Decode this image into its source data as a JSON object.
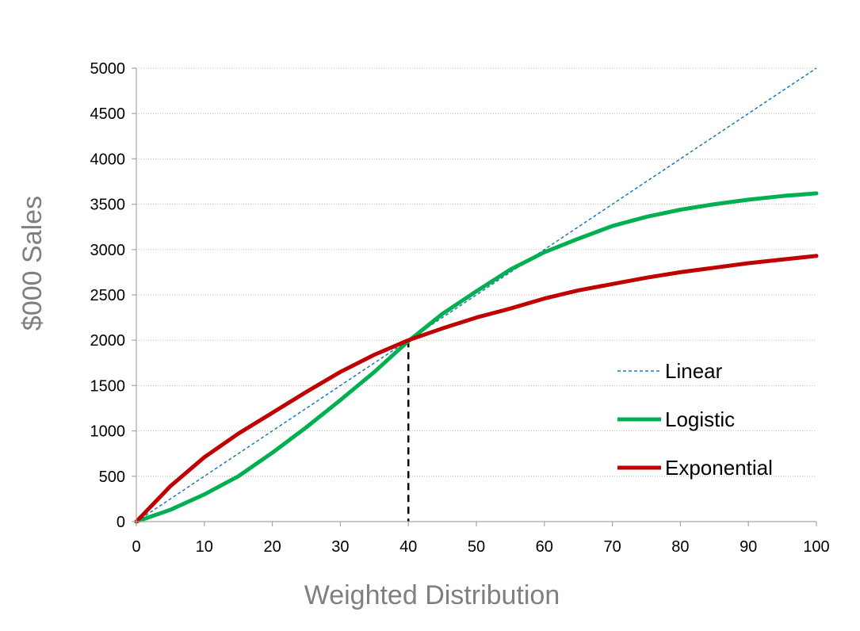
{
  "chart_data": {
    "type": "line",
    "title": "",
    "xlabel": "Weighted Distribution",
    "ylabel": "$000 Sales",
    "xlim": [
      0,
      100
    ],
    "ylim": [
      0,
      5000
    ],
    "xticks": [
      0,
      10,
      20,
      30,
      40,
      50,
      60,
      70,
      80,
      90,
      100
    ],
    "yticks": [
      0,
      500,
      1000,
      1500,
      2000,
      2500,
      3000,
      3500,
      4000,
      4500,
      5000
    ],
    "grid": "horizontal-dotted",
    "legend_position": "right",
    "reference_line": {
      "x": 40,
      "y_top": 2000,
      "style": "dashed"
    },
    "series": [
      {
        "name": "Linear",
        "color": "#1f78b4",
        "style": "dashed",
        "points": [
          [
            0,
            0
          ],
          [
            100,
            5000
          ]
        ]
      },
      {
        "name": "Logistic",
        "color": "#00b050",
        "style": "solid",
        "points": [
          [
            0,
            0
          ],
          [
            5,
            130
          ],
          [
            10,
            300
          ],
          [
            15,
            500
          ],
          [
            20,
            760
          ],
          [
            25,
            1040
          ],
          [
            30,
            1340
          ],
          [
            35,
            1650
          ],
          [
            40,
            1990
          ],
          [
            45,
            2290
          ],
          [
            50,
            2540
          ],
          [
            55,
            2780
          ],
          [
            60,
            2970
          ],
          [
            65,
            3120
          ],
          [
            70,
            3260
          ],
          [
            75,
            3360
          ],
          [
            80,
            3440
          ],
          [
            85,
            3500
          ],
          [
            90,
            3550
          ],
          [
            95,
            3590
          ],
          [
            100,
            3620
          ]
        ]
      },
      {
        "name": "Exponential",
        "color": "#c00000",
        "style": "solid",
        "points": [
          [
            0,
            0
          ],
          [
            5,
            390
          ],
          [
            10,
            710
          ],
          [
            15,
            970
          ],
          [
            20,
            1200
          ],
          [
            25,
            1430
          ],
          [
            30,
            1650
          ],
          [
            35,
            1840
          ],
          [
            40,
            2000
          ],
          [
            45,
            2130
          ],
          [
            50,
            2250
          ],
          [
            55,
            2350
          ],
          [
            60,
            2460
          ],
          [
            65,
            2550
          ],
          [
            70,
            2620
          ],
          [
            75,
            2690
          ],
          [
            80,
            2750
          ],
          [
            85,
            2800
          ],
          [
            90,
            2850
          ],
          [
            95,
            2890
          ],
          [
            100,
            2930
          ]
        ]
      }
    ]
  }
}
